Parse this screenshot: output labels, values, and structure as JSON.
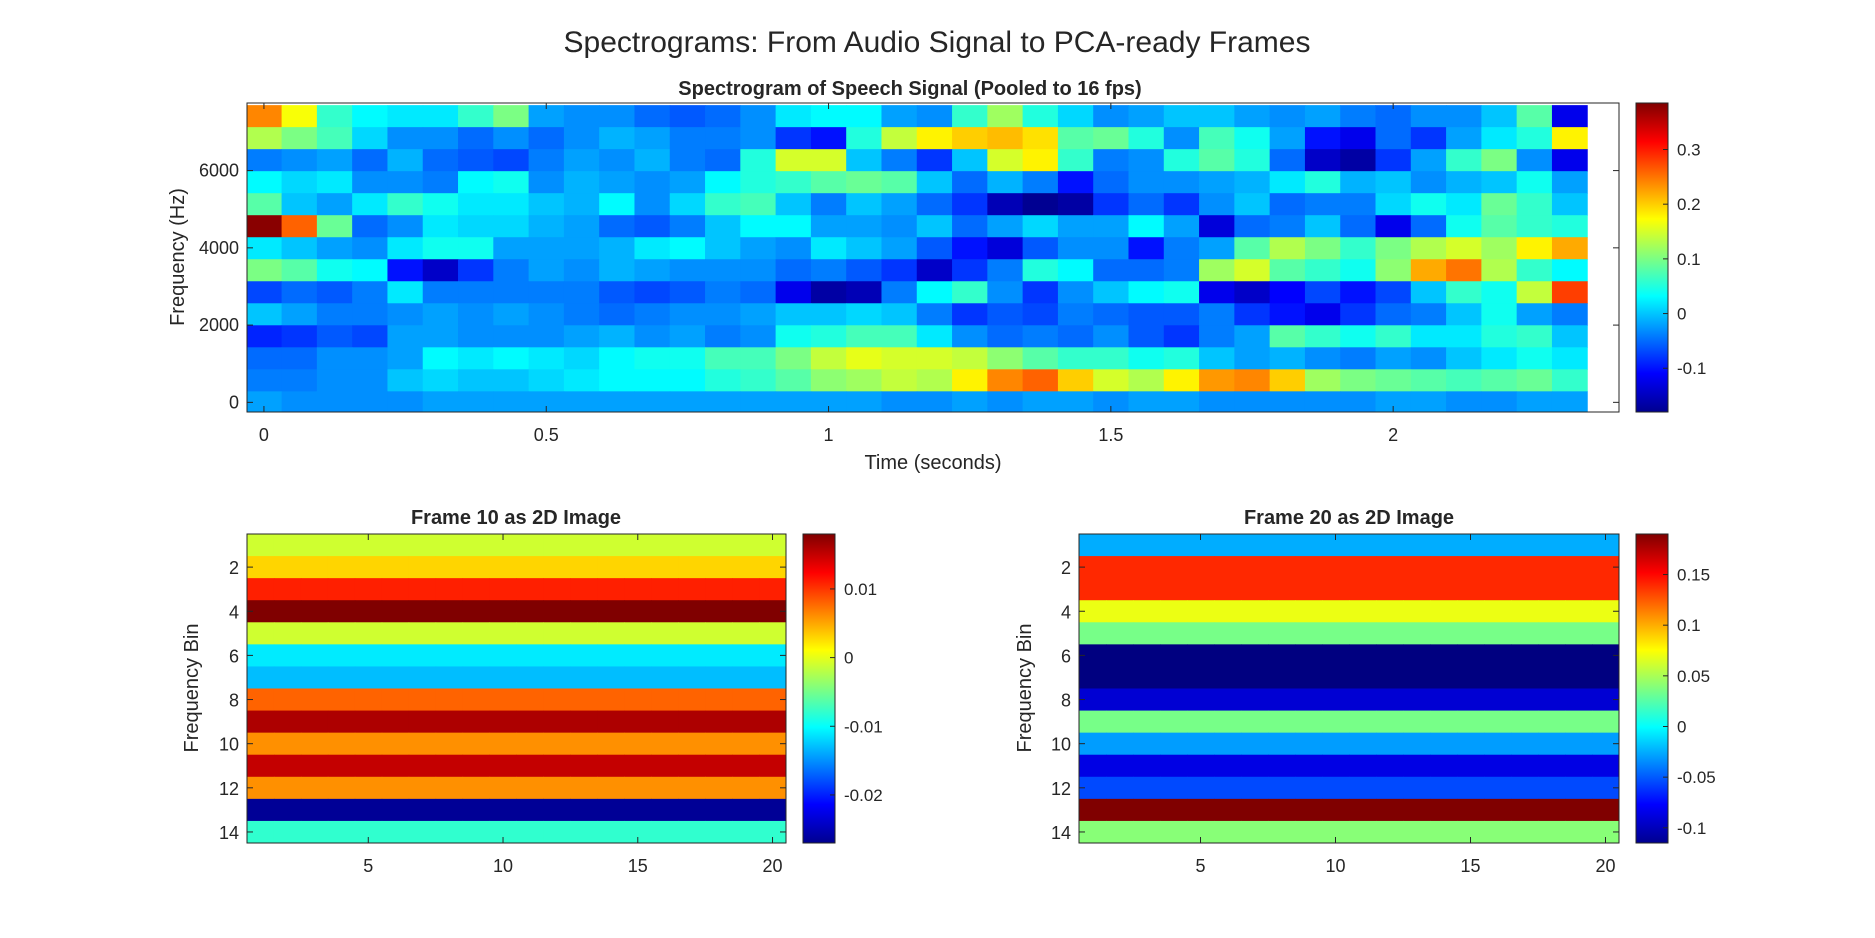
{
  "figure": {
    "title": "Spectrograms: From Audio Signal to PCA-ready Frames"
  },
  "chart_data": [
    {
      "type": "heatmap",
      "title": "Spectrogram of Speech Signal (Pooled to 16 fps)",
      "xlabel": "Time (seconds)",
      "ylabel": "Frequency (Hz)",
      "colormap": "jet",
      "xlim": [
        -0.03,
        2.4
      ],
      "ylim": [
        -250,
        7750
      ],
      "x_ticks": [
        0,
        0.5,
        1,
        1.5,
        2
      ],
      "x_tick_labels": [
        "0",
        "0.5",
        "1",
        "1.5",
        "2"
      ],
      "y_ticks": [
        0,
        2000,
        4000,
        6000
      ],
      "y_tick_labels": [
        "0",
        "2000",
        "4000",
        "6000"
      ],
      "colorbar": {
        "min": -0.18,
        "max": 0.385,
        "ticks": [
          -0.1,
          0,
          0.1,
          0.2,
          0.3
        ],
        "tick_labels": [
          "-0.1",
          "0",
          "0.1",
          "0.2",
          "0.3"
        ]
      },
      "n_time_frames": 38,
      "time_step": 0.0625,
      "n_freq_bins": 14,
      "freq_step": 570,
      "rows_high_to_low_freq": [
        [
          0.24,
          0.17,
          0.06,
          0.03,
          0.02,
          0.02,
          0.06,
          0.1,
          -0.02,
          -0.03,
          -0.03,
          -0.05,
          -0.06,
          -0.05,
          -0.03,
          0.02,
          0.03,
          0.03,
          -0.02,
          -0.03,
          0.06,
          0.12,
          0.05,
          0.01,
          -0.03,
          -0.02,
          0.0,
          0.0,
          -0.02,
          -0.03,
          -0.02,
          -0.04,
          -0.05,
          -0.03,
          -0.03,
          0.0,
          0.08,
          -0.12
        ],
        [
          0.13,
          0.1,
          0.07,
          0.01,
          -0.03,
          -0.03,
          -0.05,
          -0.03,
          -0.05,
          -0.03,
          -0.01,
          -0.02,
          -0.04,
          -0.04,
          -0.03,
          -0.08,
          -0.1,
          0.05,
          0.14,
          0.18,
          0.2,
          0.21,
          0.19,
          0.08,
          0.09,
          0.05,
          -0.03,
          0.07,
          0.04,
          -0.02,
          -0.1,
          -0.12,
          -0.05,
          -0.08,
          -0.02,
          0.02,
          0.05,
          0.18
        ],
        [
          -0.04,
          -0.03,
          -0.02,
          -0.05,
          -0.01,
          -0.05,
          -0.06,
          -0.07,
          -0.04,
          -0.02,
          -0.03,
          -0.01,
          -0.04,
          -0.05,
          0.05,
          0.15,
          0.15,
          0.0,
          -0.04,
          -0.08,
          0.0,
          0.15,
          0.18,
          0.06,
          -0.04,
          -0.03,
          0.05,
          0.08,
          0.05,
          -0.05,
          -0.14,
          -0.16,
          -0.08,
          -0.02,
          0.06,
          0.1,
          -0.03,
          -0.12
        ],
        [
          0.03,
          0.01,
          0.02,
          -0.03,
          -0.03,
          -0.04,
          0.03,
          0.04,
          -0.03,
          -0.01,
          -0.02,
          -0.03,
          -0.02,
          0.03,
          0.05,
          0.06,
          0.08,
          0.09,
          0.08,
          0.0,
          -0.05,
          -0.01,
          -0.04,
          -0.1,
          -0.05,
          -0.03,
          -0.03,
          -0.02,
          -0.01,
          0.02,
          0.05,
          -0.01,
          0.0,
          -0.03,
          -0.01,
          0.0,
          0.04,
          -0.02
        ],
        [
          0.08,
          0.0,
          -0.02,
          0.02,
          0.06,
          0.04,
          0.02,
          0.02,
          0.0,
          -0.01,
          0.03,
          -0.03,
          0.01,
          0.06,
          0.07,
          0.0,
          -0.04,
          0.0,
          -0.02,
          -0.05,
          -0.08,
          -0.15,
          -0.17,
          -0.16,
          -0.08,
          -0.05,
          -0.08,
          -0.03,
          0.0,
          -0.05,
          -0.04,
          -0.04,
          0.01,
          0.04,
          0.02,
          0.09,
          0.06,
          0.0
        ],
        [
          0.38,
          0.26,
          0.09,
          -0.05,
          -0.03,
          0.02,
          0.01,
          0.01,
          -0.01,
          -0.02,
          -0.05,
          -0.06,
          -0.04,
          0.0,
          0.03,
          0.03,
          -0.02,
          -0.02,
          -0.03,
          0.0,
          -0.05,
          -0.02,
          0.01,
          -0.02,
          -0.02,
          0.03,
          -0.02,
          -0.13,
          -0.05,
          -0.04,
          0.0,
          -0.05,
          -0.12,
          -0.05,
          0.04,
          0.08,
          0.06,
          0.05
        ],
        [
          0.02,
          0.0,
          -0.02,
          -0.03,
          0.02,
          0.04,
          0.04,
          -0.02,
          -0.02,
          -0.02,
          -0.01,
          0.02,
          0.03,
          0.0,
          -0.02,
          -0.03,
          0.02,
          0.0,
          -0.02,
          -0.06,
          -0.1,
          -0.13,
          -0.06,
          -0.03,
          -0.03,
          -0.1,
          -0.04,
          -0.02,
          0.08,
          0.13,
          0.1,
          0.06,
          0.1,
          0.13,
          0.15,
          0.12,
          0.18,
          0.22
        ],
        [
          0.1,
          0.08,
          0.04,
          0.03,
          -0.1,
          -0.14,
          -0.08,
          -0.04,
          -0.02,
          -0.03,
          -0.01,
          -0.02,
          -0.03,
          -0.03,
          -0.03,
          -0.05,
          -0.04,
          -0.06,
          -0.08,
          -0.14,
          -0.08,
          -0.04,
          0.05,
          0.03,
          -0.05,
          -0.05,
          -0.04,
          0.12,
          0.15,
          0.08,
          0.06,
          0.04,
          0.11,
          0.22,
          0.25,
          0.13,
          0.06,
          0.03
        ],
        [
          -0.07,
          -0.05,
          -0.06,
          -0.04,
          0.02,
          -0.04,
          -0.04,
          -0.04,
          -0.04,
          -0.04,
          -0.06,
          -0.07,
          -0.06,
          -0.04,
          -0.05,
          -0.12,
          -0.16,
          -0.15,
          -0.04,
          0.03,
          0.06,
          -0.03,
          -0.08,
          -0.03,
          0.0,
          0.03,
          0.04,
          -0.12,
          -0.14,
          -0.11,
          -0.07,
          -0.1,
          -0.07,
          0.0,
          0.06,
          0.04,
          0.14,
          0.28
        ],
        [
          0.0,
          -0.02,
          -0.04,
          -0.04,
          -0.03,
          -0.02,
          -0.03,
          -0.02,
          -0.03,
          -0.04,
          -0.05,
          -0.04,
          -0.03,
          -0.03,
          -0.02,
          0.0,
          0.0,
          0.01,
          0.0,
          -0.04,
          -0.08,
          -0.06,
          -0.07,
          -0.04,
          -0.05,
          -0.06,
          -0.06,
          -0.04,
          -0.08,
          -0.1,
          -0.12,
          -0.08,
          -0.05,
          -0.04,
          0.0,
          0.04,
          -0.02,
          -0.04
        ],
        [
          -0.09,
          -0.08,
          -0.06,
          -0.07,
          -0.02,
          -0.02,
          -0.03,
          -0.03,
          -0.03,
          -0.02,
          -0.01,
          -0.03,
          -0.02,
          -0.04,
          -0.03,
          0.04,
          0.05,
          0.07,
          0.07,
          0.02,
          -0.03,
          -0.05,
          -0.04,
          -0.05,
          -0.03,
          -0.06,
          -0.08,
          -0.04,
          -0.02,
          0.08,
          0.06,
          0.04,
          0.06,
          0.02,
          0.02,
          0.05,
          0.06,
          0.0
        ],
        [
          -0.05,
          -0.05,
          -0.03,
          -0.03,
          -0.02,
          0.03,
          0.02,
          0.03,
          0.02,
          0.01,
          0.03,
          0.04,
          0.04,
          0.07,
          0.07,
          0.1,
          0.14,
          0.16,
          0.15,
          0.15,
          0.14,
          0.11,
          0.08,
          0.06,
          0.06,
          0.04,
          0.05,
          0.0,
          -0.02,
          -0.01,
          -0.03,
          -0.04,
          -0.02,
          -0.03,
          0.0,
          0.02,
          0.04,
          0.02
        ],
        [
          -0.04,
          -0.04,
          -0.03,
          -0.03,
          0.0,
          0.01,
          0.0,
          0.0,
          0.01,
          0.02,
          0.03,
          0.03,
          0.03,
          0.05,
          0.06,
          0.08,
          0.11,
          0.12,
          0.14,
          0.13,
          0.18,
          0.24,
          0.26,
          0.2,
          0.15,
          0.13,
          0.18,
          0.23,
          0.24,
          0.2,
          0.12,
          0.1,
          0.09,
          0.08,
          0.07,
          0.08,
          0.09,
          0.06
        ],
        [
          -0.02,
          -0.03,
          -0.03,
          -0.03,
          -0.03,
          -0.02,
          -0.02,
          -0.02,
          -0.02,
          -0.02,
          -0.02,
          -0.02,
          -0.02,
          -0.02,
          -0.02,
          -0.02,
          -0.02,
          -0.02,
          -0.03,
          -0.03,
          -0.02,
          -0.03,
          -0.02,
          -0.02,
          -0.03,
          -0.02,
          -0.02,
          -0.03,
          -0.03,
          -0.03,
          -0.03,
          -0.03,
          -0.02,
          -0.02,
          -0.03,
          -0.03,
          -0.02,
          -0.02
        ]
      ]
    },
    {
      "type": "heatmap",
      "title": "Frame 10 as 2D Image",
      "xlabel": "",
      "ylabel": "Frequency Bin",
      "colormap": "jet",
      "xlim": [
        0.5,
        20.5
      ],
      "ylim": [
        0.5,
        14.5
      ],
      "y_reversed": true,
      "x_ticks": [
        5,
        10,
        15,
        20
      ],
      "y_ticks": [
        2,
        4,
        6,
        8,
        10,
        12,
        14
      ],
      "colorbar": {
        "min": -0.027,
        "max": 0.018,
        "ticks": [
          -0.02,
          -0.01,
          0,
          0.01
        ],
        "tick_labels": [
          "-0.02",
          "-0.01",
          "0",
          "0.01"
        ]
      },
      "n_columns": 20,
      "bin_values": [
        -0.001,
        0.003,
        0.011,
        0.018,
        -0.001,
        -0.011,
        -0.013,
        0.008,
        0.016,
        0.006,
        0.015,
        0.006,
        -0.026,
        -0.008
      ]
    },
    {
      "type": "heatmap",
      "title": "Frame 20 as 2D Image",
      "xlabel": "",
      "ylabel": "Frequency Bin",
      "colormap": "jet",
      "xlim": [
        0.5,
        20.5
      ],
      "ylim": [
        0.5,
        14.5
      ],
      "y_reversed": true,
      "x_ticks": [
        5,
        10,
        15,
        20
      ],
      "y_ticks": [
        2,
        4,
        6,
        8,
        10,
        12,
        14
      ],
      "colorbar": {
        "min": -0.115,
        "max": 0.19,
        "ticks": [
          -0.1,
          -0.05,
          0,
          0.05,
          0.1,
          0.15
        ],
        "tick_labels": [
          "-0.1",
          "-0.05",
          "0",
          "0.05",
          "0.1",
          "0.15"
        ]
      },
      "n_columns": 20,
      "bin_values": [
        -0.025,
        0.14,
        0.14,
        0.07,
        0.035,
        -0.115,
        -0.115,
        -0.09,
        0.035,
        -0.03,
        -0.085,
        -0.055,
        0.19,
        0.04
      ]
    }
  ]
}
